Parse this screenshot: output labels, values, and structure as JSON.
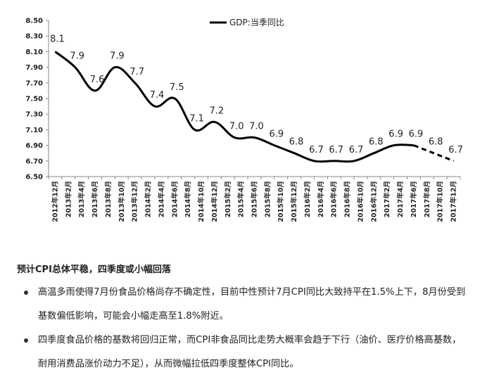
{
  "chart_data": {
    "type": "line",
    "legend": "GDP:当季同比",
    "legend_position": "top-center",
    "ylim": [
      6.5,
      8.5
    ],
    "yticks": [
      "8.50",
      "8.30",
      "8.10",
      "7.90",
      "7.70",
      "7.50",
      "7.30",
      "7.10",
      "6.90",
      "6.70",
      "6.50"
    ],
    "categories": [
      "2012年12月",
      "2013年2月",
      "2013年4月",
      "2013年6月",
      "2013年8月",
      "2013年10月",
      "2013年12月",
      "2014年2月",
      "2014年4月",
      "2014年6月",
      "2014年8月",
      "2014年10月",
      "2014年12月",
      "2015年2月",
      "2015年4月",
      "2015年6月",
      "2015年8月",
      "2015年10月",
      "2015年12月",
      "2016年2月",
      "2016年4月",
      "2016年6月",
      "2016年8月",
      "2016年10月",
      "2016年12月",
      "2017年2月",
      "2017年4月",
      "2017年6月",
      "2017年8月",
      "2017年10月",
      "2017年12月"
    ],
    "series": [
      {
        "name": "GDP:当季同比",
        "points": [
          {
            "x": "2012年12月",
            "y": 8.1,
            "label": "8.1"
          },
          {
            "x": "2013年3月",
            "y": 7.9,
            "label": "7.9"
          },
          {
            "x": "2013年6月",
            "y": 7.6,
            "label": "7.6"
          },
          {
            "x": "2013年9月",
            "y": 7.9,
            "label": "7.9"
          },
          {
            "x": "2013年12月",
            "y": 7.7,
            "label": "7.7"
          },
          {
            "x": "2014年3月",
            "y": 7.4,
            "label": "7.4"
          },
          {
            "x": "2014年6月",
            "y": 7.5,
            "label": "7.5"
          },
          {
            "x": "2014年9月",
            "y": 7.1,
            "label": "7.1"
          },
          {
            "x": "2014年12月",
            "y": 7.2,
            "label": "7.2"
          },
          {
            "x": "2015年3月",
            "y": 7.0,
            "label": "7.0"
          },
          {
            "x": "2015年6月",
            "y": 7.0,
            "label": "7.0"
          },
          {
            "x": "2015年9月",
            "y": 6.9,
            "label": "6.9"
          },
          {
            "x": "2015年12月",
            "y": 6.8,
            "label": "6.8"
          },
          {
            "x": "2016年3月",
            "y": 6.7,
            "label": "6.7"
          },
          {
            "x": "2016年6月",
            "y": 6.7,
            "label": "6.7"
          },
          {
            "x": "2016年9月",
            "y": 6.7,
            "label": "6.7"
          },
          {
            "x": "2016年12月",
            "y": 6.8,
            "label": "6.8"
          },
          {
            "x": "2017年3月",
            "y": 6.9,
            "label": "6.9"
          },
          {
            "x": "2017年6月",
            "y": 6.9,
            "label": "6.9"
          },
          {
            "x": "2017年9月",
            "y": 6.8,
            "label": "6.8",
            "forecast": true
          },
          {
            "x": "2017年12月",
            "y": 6.7,
            "label": "6.7",
            "forecast": true
          }
        ]
      }
    ]
  },
  "notes": {
    "heading": "预计CPI总体平稳，四季度或小幅回落",
    "bullets": [
      {
        "line1": "高温多雨使得7月份食品价格尚存不确定性，目前中性预计7月CPI同比大致持平在1.5%上下，8月份受到",
        "line2": "基数偏低影响，可能会小幅走高至1.8%附近。"
      },
      {
        "line1": "四季度食品价格的基数将回归正常，而CPI非食品同比走势大概率会趋于下行（油价、医疗价格高基数，",
        "line2": "耐用消费品涨价动力不足），从而微幅拉低四季度整体CPI同比。"
      }
    ]
  }
}
